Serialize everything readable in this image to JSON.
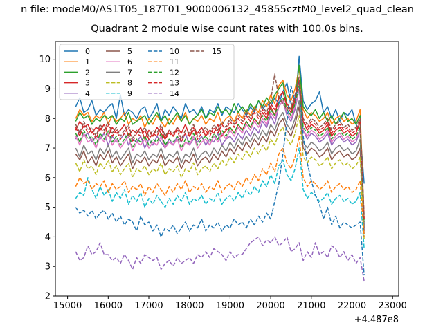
{
  "suptitle": "n file: modeM0/AS1T05_187T01_9000006132_45855cztM0_level2_quad_clean",
  "chart_data": {
    "type": "line",
    "title": "Quadrant 2 module wise count rates with 100.0s bins.",
    "xlabel": "",
    "ylabel": "",
    "x_offset_label": "+4.487e8",
    "xlim": [
      14700,
      23150
    ],
    "ylim": [
      2,
      10.6
    ],
    "xticks": [
      15000,
      16000,
      17000,
      18000,
      19000,
      20000,
      21000,
      22000,
      23000
    ],
    "yticks": [
      2,
      3,
      4,
      5,
      6,
      7,
      8,
      9,
      10
    ],
    "x_start": 15200,
    "x_step": 100,
    "legend_position": "upper-left",
    "series": [
      {
        "name": "0",
        "color": "#1f77b4",
        "style": "solid",
        "values": [
          8.4,
          8.7,
          8.2,
          8.3,
          8.6,
          8.1,
          8.3,
          8.2,
          8.4,
          8.5,
          8.0,
          8.8,
          8.1,
          8.3,
          8.2,
          8.0,
          8.3,
          8.4,
          8.0,
          8.2,
          8.5,
          7.9,
          8.3,
          8.1,
          8.4,
          8.2,
          8.0,
          8.5,
          8.2,
          8.3,
          8.1,
          8.4,
          8.0,
          8.3,
          8.2,
          8.5,
          8.1,
          8.4,
          8.3,
          8.2,
          8.5,
          8.3,
          8.1,
          8.4,
          8.2,
          8.6,
          8.3,
          8.5,
          8.4,
          8.7,
          8.5,
          8.9,
          9.2,
          8.5,
          8.4,
          10.1,
          8.6,
          8.3,
          8.5,
          8.6,
          8.9,
          8.2,
          8.4,
          8.0,
          8.3,
          7.9,
          8.2,
          8.1,
          8.3,
          7.8,
          7.6,
          5.8
        ]
      },
      {
        "name": "1",
        "color": "#ff7f0e",
        "style": "solid",
        "values": [
          8.0,
          8.3,
          8.1,
          8.2,
          7.9,
          8.1,
          8.0,
          8.2,
          7.8,
          8.1,
          7.9,
          8.0,
          8.2,
          7.8,
          8.0,
          7.9,
          8.1,
          7.7,
          8.0,
          7.8,
          8.1,
          7.9,
          7.7,
          8.0,
          7.8,
          8.1,
          7.9,
          8.2,
          7.8,
          8.0,
          7.9,
          8.1,
          7.8,
          8.0,
          7.9,
          8.2,
          7.8,
          8.0,
          8.1,
          7.9,
          8.2,
          8.0,
          8.3,
          8.1,
          8.4,
          8.2,
          8.6,
          8.4,
          8.8,
          8.5,
          9.1,
          9.3,
          8.8,
          8.6,
          9.0,
          9.7,
          8.3,
          8.0,
          8.2,
          8.1,
          7.9,
          8.0,
          8.2,
          7.8,
          8.0,
          8.1,
          7.9,
          8.0,
          7.8,
          7.9,
          8.3,
          4.6
        ]
      },
      {
        "name": "2",
        "color": "#2ca02c",
        "style": "solid",
        "values": [
          7.9,
          8.2,
          8.0,
          8.1,
          7.8,
          8.0,
          7.9,
          8.1,
          8.0,
          8.1,
          7.8,
          8.0,
          7.9,
          8.2,
          7.8,
          7.9,
          8.0,
          8.1,
          7.8,
          8.0,
          8.2,
          7.9,
          8.1,
          7.8,
          8.0,
          8.2,
          7.9,
          8.1,
          7.8,
          8.0,
          8.1,
          8.3,
          8.0,
          8.2,
          8.1,
          8.4,
          8.2,
          8.3,
          8.1,
          8.5,
          8.2,
          8.4,
          8.2,
          8.5,
          8.3,
          8.6,
          8.4,
          8.7,
          8.5,
          8.8,
          9.0,
          9.2,
          8.5,
          8.3,
          8.6,
          9.8,
          8.4,
          8.2,
          8.1,
          8.3,
          8.0,
          8.2,
          7.9,
          8.1,
          7.8,
          8.0,
          8.2,
          7.9,
          8.0,
          7.8,
          8.1,
          4.4
        ]
      },
      {
        "name": "3",
        "color": "#d62728",
        "style": "solid",
        "values": [
          7.6,
          7.9,
          7.7,
          7.8,
          7.5,
          7.7,
          7.6,
          7.8,
          7.4,
          7.7,
          7.5,
          7.6,
          7.8,
          7.4,
          7.6,
          7.5,
          7.7,
          7.3,
          7.6,
          7.4,
          7.7,
          7.5,
          7.3,
          7.6,
          7.4,
          7.7,
          7.5,
          7.8,
          7.4,
          7.6,
          7.5,
          7.7,
          7.4,
          7.6,
          7.5,
          7.8,
          7.4,
          7.6,
          7.7,
          7.5,
          7.8,
          7.6,
          7.9,
          7.7,
          8.0,
          7.8,
          8.2,
          8.0,
          8.4,
          8.1,
          8.7,
          8.9,
          8.4,
          8.2,
          8.6,
          9.3,
          7.9,
          7.6,
          7.8,
          7.7,
          7.5,
          7.6,
          7.8,
          7.4,
          7.6,
          7.7,
          7.5,
          7.6,
          7.4,
          7.5,
          7.9,
          4.3
        ]
      },
      {
        "name": "4",
        "color": "#9467bd",
        "style": "solid",
        "values": [
          7.3,
          7.6,
          7.4,
          7.5,
          7.2,
          7.4,
          7.3,
          7.5,
          7.1,
          7.4,
          7.2,
          7.3,
          7.5,
          7.1,
          7.3,
          7.2,
          7.4,
          7.0,
          7.3,
          7.1,
          7.4,
          7.2,
          7.0,
          7.3,
          7.1,
          7.4,
          7.2,
          7.5,
          7.1,
          7.3,
          7.2,
          7.4,
          7.1,
          7.3,
          7.2,
          7.5,
          7.1,
          7.3,
          7.4,
          7.2,
          7.5,
          7.3,
          7.6,
          7.4,
          7.7,
          7.5,
          7.9,
          7.7,
          8.1,
          7.8,
          8.4,
          8.6,
          8.1,
          7.9,
          8.3,
          9.0,
          7.6,
          7.3,
          7.5,
          7.4,
          7.2,
          7.3,
          7.5,
          7.1,
          7.3,
          7.4,
          7.2,
          7.3,
          7.1,
          7.2,
          7.6,
          4.2
        ]
      },
      {
        "name": "5",
        "color": "#8c564b",
        "style": "solid",
        "values": [
          6.8,
          6.6,
          6.9,
          6.5,
          6.7,
          6.4,
          6.8,
          6.6,
          6.9,
          6.5,
          6.7,
          6.4,
          6.6,
          6.8,
          6.3,
          6.6,
          6.5,
          6.7,
          6.4,
          6.6,
          6.5,
          6.8,
          6.4,
          6.6,
          6.5,
          6.7,
          6.3,
          6.6,
          6.5,
          6.8,
          6.4,
          6.6,
          6.7,
          6.5,
          6.8,
          6.6,
          6.9,
          6.7,
          7.0,
          6.8,
          7.1,
          6.9,
          7.2,
          7.0,
          7.3,
          7.1,
          7.4,
          7.2,
          7.6,
          7.4,
          7.8,
          8.0,
          7.6,
          7.4,
          7.8,
          8.4,
          7.0,
          6.8,
          7.0,
          6.9,
          6.7,
          6.8,
          7.0,
          6.6,
          6.8,
          6.9,
          6.7,
          6.8,
          6.6,
          6.7,
          7.0,
          4.1
        ]
      },
      {
        "name": "6",
        "color": "#e377c2",
        "style": "solid",
        "values": [
          7.4,
          7.1,
          7.5,
          7.2,
          7.3,
          7.0,
          7.4,
          7.2,
          7.5,
          7.1,
          7.3,
          7.0,
          7.2,
          7.4,
          6.9,
          7.2,
          7.1,
          7.3,
          7.0,
          7.2,
          7.1,
          7.4,
          7.0,
          7.2,
          7.1,
          7.3,
          6.9,
          7.2,
          7.1,
          7.4,
          7.0,
          7.2,
          7.3,
          7.1,
          7.4,
          7.2,
          7.5,
          7.3,
          7.6,
          7.4,
          7.7,
          7.5,
          7.8,
          7.6,
          7.9,
          7.7,
          8.0,
          7.8,
          8.2,
          8.0,
          8.4,
          8.6,
          8.2,
          8.0,
          8.4,
          9.0,
          7.6,
          7.4,
          7.6,
          7.5,
          7.3,
          7.4,
          7.6,
          7.2,
          7.4,
          7.5,
          7.3,
          7.4,
          7.2,
          7.3,
          7.6,
          4.4
        ]
      },
      {
        "name": "7",
        "color": "#7f7f7f",
        "style": "solid",
        "values": [
          7.0,
          6.7,
          7.1,
          6.8,
          6.9,
          6.6,
          7.0,
          6.8,
          7.1,
          6.7,
          6.9,
          6.6,
          6.8,
          7.0,
          6.5,
          6.8,
          6.7,
          6.9,
          6.6,
          6.8,
          6.7,
          7.0,
          6.6,
          6.8,
          6.7,
          6.9,
          6.5,
          6.8,
          6.7,
          7.0,
          6.6,
          6.8,
          6.9,
          6.7,
          7.0,
          6.8,
          7.1,
          6.9,
          7.2,
          7.0,
          7.3,
          7.1,
          7.4,
          7.2,
          7.5,
          7.3,
          7.6,
          7.4,
          7.8,
          7.6,
          8.0,
          8.2,
          7.8,
          7.6,
          8.0,
          8.6,
          7.2,
          7.0,
          7.2,
          7.1,
          6.9,
          7.0,
          7.2,
          6.8,
          7.0,
          7.1,
          6.9,
          7.0,
          6.8,
          6.9,
          7.3,
          4.3
        ]
      },
      {
        "name": "8",
        "color": "#bcbd22",
        "style": "dashed",
        "values": [
          6.5,
          6.2,
          6.6,
          6.3,
          6.4,
          6.1,
          6.5,
          6.3,
          6.6,
          6.2,
          6.4,
          6.1,
          6.3,
          6.5,
          6.0,
          6.3,
          6.2,
          6.4,
          6.1,
          6.3,
          6.2,
          6.5,
          6.1,
          6.3,
          6.2,
          6.4,
          6.0,
          6.3,
          6.2,
          6.5,
          6.1,
          6.3,
          6.4,
          6.2,
          6.5,
          6.3,
          6.6,
          6.4,
          6.7,
          6.5,
          6.8,
          6.6,
          6.9,
          6.7,
          7.0,
          6.8,
          7.1,
          6.9,
          7.3,
          7.1,
          7.5,
          7.7,
          7.3,
          7.1,
          7.5,
          8.1,
          6.7,
          6.5,
          6.7,
          6.6,
          6.4,
          6.5,
          6.7,
          6.3,
          6.5,
          6.6,
          6.4,
          6.5,
          6.3,
          6.4,
          6.7,
          3.9
        ]
      },
      {
        "name": "9",
        "color": "#17becf",
        "style": "dashed",
        "values": [
          5.3,
          5.5,
          5.4,
          6.0,
          5.6,
          5.3,
          5.7,
          5.4,
          5.6,
          5.2,
          5.5,
          5.3,
          5.6,
          5.1,
          5.4,
          5.2,
          5.5,
          5.0,
          5.3,
          5.1,
          5.4,
          5.2,
          5.0,
          5.3,
          5.1,
          5.4,
          5.2,
          5.5,
          5.1,
          5.3,
          5.2,
          5.4,
          5.1,
          5.3,
          5.2,
          5.5,
          5.1,
          5.3,
          5.4,
          5.2,
          5.5,
          5.3,
          5.6,
          5.4,
          5.7,
          5.5,
          5.9,
          5.7,
          6.1,
          5.8,
          6.4,
          6.6,
          6.1,
          5.9,
          6.3,
          7.0,
          5.6,
          5.3,
          5.5,
          5.4,
          5.2,
          5.3,
          5.5,
          5.1,
          5.3,
          5.4,
          5.2,
          5.3,
          5.1,
          5.2,
          5.5,
          3.6
        ]
      },
      {
        "name": "10",
        "color": "#1f77b4",
        "style": "dashed",
        "values": [
          5.0,
          4.8,
          4.9,
          4.7,
          4.9,
          4.6,
          4.8,
          4.9,
          4.6,
          4.8,
          4.5,
          4.7,
          4.4,
          4.6,
          4.5,
          4.2,
          4.7,
          4.4,
          4.5,
          4.2,
          4.4,
          4.0,
          4.3,
          4.2,
          4.4,
          4.1,
          4.3,
          4.5,
          4.2,
          4.4,
          4.3,
          4.6,
          4.2,
          4.4,
          4.3,
          4.5,
          4.2,
          4.4,
          4.3,
          4.6,
          4.4,
          4.5,
          4.3,
          4.6,
          4.4,
          4.7,
          4.5,
          4.8,
          4.6,
          5.2,
          5.8,
          6.8,
          7.9,
          9.1,
          8.6,
          9.2,
          7.4,
          6.5,
          5.9,
          5.4,
          5.1,
          4.6,
          5.0,
          4.4,
          4.7,
          4.3,
          4.5,
          4.4,
          4.3,
          4.4,
          4.5,
          2.7
        ]
      },
      {
        "name": "11",
        "color": "#ff7f0e",
        "style": "dashed",
        "values": [
          5.7,
          6.0,
          5.8,
          5.9,
          5.6,
          5.8,
          5.7,
          5.9,
          5.5,
          5.8,
          5.6,
          5.7,
          5.9,
          5.5,
          5.7,
          5.6,
          5.8,
          5.4,
          5.7,
          5.5,
          5.8,
          5.6,
          5.4,
          5.7,
          5.5,
          5.8,
          5.6,
          5.9,
          5.5,
          5.7,
          5.6,
          5.8,
          5.5,
          5.7,
          5.6,
          5.9,
          5.5,
          5.7,
          5.8,
          5.6,
          5.9,
          5.7,
          6.0,
          5.8,
          6.1,
          5.9,
          6.3,
          6.1,
          6.5,
          6.2,
          6.8,
          7.0,
          6.5,
          6.3,
          6.7,
          7.4,
          6.0,
          5.7,
          5.9,
          5.8,
          5.6,
          5.7,
          5.9,
          5.5,
          5.7,
          5.8,
          5.6,
          5.7,
          5.5,
          5.6,
          5.9,
          4.0
        ]
      },
      {
        "name": "12",
        "color": "#2ca02c",
        "style": "dashed",
        "values": [
          7.5,
          7.2,
          7.6,
          7.3,
          7.4,
          7.1,
          7.5,
          7.3,
          7.6,
          7.2,
          7.4,
          7.1,
          7.3,
          7.5,
          7.0,
          7.3,
          7.2,
          7.4,
          7.1,
          7.3,
          7.2,
          7.5,
          7.1,
          7.3,
          7.2,
          7.4,
          7.0,
          7.3,
          7.2,
          7.5,
          7.1,
          7.3,
          7.4,
          7.2,
          7.5,
          7.3,
          7.6,
          7.4,
          7.7,
          7.5,
          7.8,
          7.6,
          7.9,
          7.7,
          8.0,
          7.8,
          8.1,
          7.9,
          8.3,
          8.1,
          8.5,
          8.7,
          8.3,
          8.1,
          8.5,
          9.1,
          7.7,
          7.5,
          7.7,
          7.6,
          7.4,
          7.5,
          7.7,
          7.3,
          7.5,
          7.6,
          7.4,
          7.5,
          7.3,
          7.4,
          7.7,
          4.5
        ]
      },
      {
        "name": "13",
        "color": "#d62728",
        "style": "dashed",
        "values": [
          7.7,
          7.4,
          7.8,
          7.5,
          7.6,
          7.3,
          7.7,
          7.5,
          7.8,
          7.4,
          7.6,
          7.3,
          7.5,
          7.7,
          7.2,
          7.5,
          7.4,
          7.6,
          7.3,
          7.5,
          7.4,
          7.7,
          7.3,
          7.5,
          7.4,
          7.6,
          7.2,
          7.5,
          7.4,
          7.7,
          7.3,
          7.5,
          7.6,
          7.4,
          7.7,
          7.5,
          7.8,
          7.6,
          7.9,
          7.7,
          8.0,
          7.8,
          8.1,
          7.9,
          8.2,
          8.0,
          8.3,
          8.1,
          8.5,
          8.3,
          8.7,
          8.9,
          8.5,
          8.3,
          8.7,
          9.3,
          7.9,
          7.7,
          7.9,
          7.8,
          7.6,
          7.7,
          7.9,
          7.5,
          7.7,
          7.8,
          7.6,
          7.7,
          7.5,
          7.6,
          7.9,
          4.6
        ]
      },
      {
        "name": "14",
        "color": "#9467bd",
        "style": "dashed",
        "values": [
          3.5,
          3.2,
          3.3,
          3.7,
          3.4,
          3.5,
          3.8,
          3.4,
          3.4,
          3.2,
          3.3,
          3.1,
          3.4,
          3.2,
          2.9,
          3.3,
          3.1,
          3.4,
          3.3,
          3.2,
          3.3,
          2.9,
          3.1,
          3.2,
          3.0,
          3.3,
          3.1,
          3.2,
          3.3,
          3.1,
          3.4,
          3.3,
          3.5,
          3.3,
          3.6,
          3.5,
          3.4,
          3.2,
          3.5,
          3.3,
          3.4,
          3.4,
          3.6,
          3.8,
          3.9,
          4.0,
          3.7,
          3.9,
          3.8,
          4.0,
          3.7,
          3.8,
          4.0,
          3.5,
          3.6,
          3.8,
          3.2,
          3.5,
          3.3,
          3.8,
          3.4,
          3.5,
          3.3,
          3.7,
          3.6,
          3.3,
          3.5,
          3.2,
          3.4,
          3.1,
          3.3,
          2.5
        ]
      },
      {
        "name": "15",
        "color": "#8c564b",
        "style": "dashed",
        "values": [
          7.8,
          7.5,
          7.9,
          7.6,
          7.7,
          7.4,
          7.8,
          7.6,
          7.9,
          7.5,
          7.7,
          7.4,
          7.6,
          7.8,
          7.3,
          7.6,
          7.5,
          7.7,
          7.4,
          7.6,
          7.5,
          7.8,
          7.4,
          7.6,
          7.5,
          7.7,
          7.3,
          7.6,
          7.5,
          7.8,
          7.4,
          7.6,
          7.7,
          7.5,
          7.8,
          7.6,
          7.9,
          7.7,
          8.0,
          7.8,
          8.1,
          7.9,
          8.2,
          8.0,
          8.3,
          8.1,
          8.4,
          8.2,
          8.6,
          9.5,
          8.7,
          8.5,
          8.3,
          8.4,
          8.8,
          9.4,
          8.0,
          7.8,
          8.0,
          7.9,
          7.7,
          7.8,
          8.0,
          7.6,
          7.8,
          7.9,
          7.7,
          7.8,
          7.6,
          7.7,
          8.0,
          4.7
        ]
      }
    ]
  }
}
